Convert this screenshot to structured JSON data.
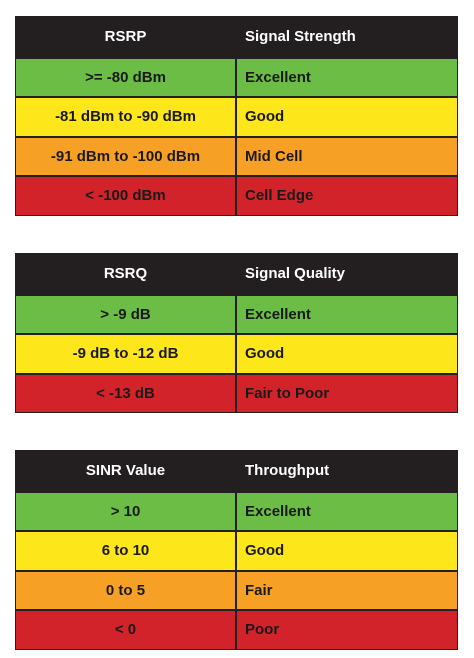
{
  "tables": [
    {
      "columns": [
        "RSRP",
        "Signal Strength"
      ],
      "rows": [
        {
          "cells": [
            ">= -80 dBm",
            "Excellent"
          ],
          "color": "#6cbd45"
        },
        {
          "cells": [
            "-81 dBm to -90 dBm",
            "Good"
          ],
          "color": "#fde619"
        },
        {
          "cells": [
            "-91 dBm to -100 dBm",
            "Mid Cell"
          ],
          "color": "#f7a026"
        },
        {
          "cells": [
            "< -100 dBm",
            "Cell Edge"
          ],
          "color": "#d2232a"
        }
      ]
    },
    {
      "columns": [
        "RSRQ",
        "Signal Quality"
      ],
      "rows": [
        {
          "cells": [
            "> -9 dB",
            "Excellent"
          ],
          "color": "#6cbd45"
        },
        {
          "cells": [
            "-9 dB to -12 dB",
            "Good"
          ],
          "color": "#fde619"
        },
        {
          "cells": [
            "< -13 dB",
            "Fair to Poor"
          ],
          "color": "#d2232a"
        }
      ]
    },
    {
      "columns": [
        "SINR Value",
        "Throughput"
      ],
      "rows": [
        {
          "cells": [
            "> 10",
            "Excellent"
          ],
          "color": "#6cbd45"
        },
        {
          "cells": [
            "6 to 10",
            "Good"
          ],
          "color": "#fde619"
        },
        {
          "cells": [
            "0 to 5",
            "Fair"
          ],
          "color": "#f7a026"
        },
        {
          "cells": [
            "< 0",
            "Poor"
          ],
          "color": "#d2232a"
        }
      ]
    }
  ]
}
